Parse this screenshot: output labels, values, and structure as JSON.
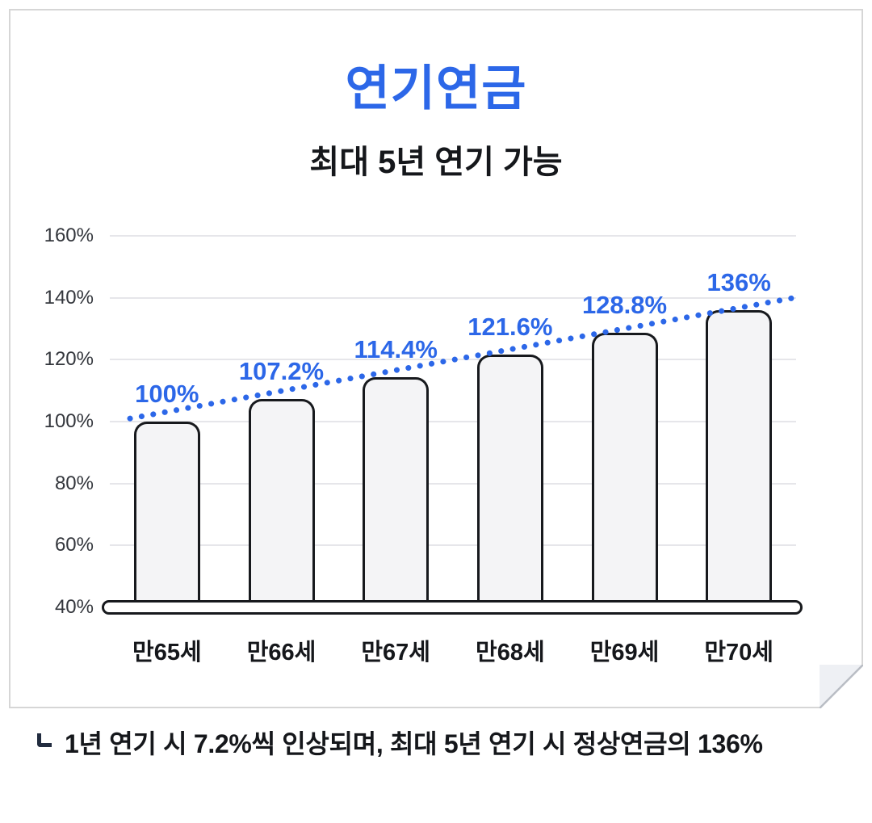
{
  "header": {
    "title": "연기연금",
    "subtitle": "최대 5년 연기 가능"
  },
  "chart_data": {
    "type": "bar",
    "title": "연기연금",
    "subtitle": "최대 5년 연기 가능",
    "categories": [
      "만65세",
      "만66세",
      "만67세",
      "만68세",
      "만69세",
      "만70세"
    ],
    "values": [
      100,
      107.2,
      114.4,
      121.6,
      128.8,
      136
    ],
    "value_labels": [
      "100%",
      "107.2%",
      "114.4%",
      "121.6%",
      "128.8%",
      "136%"
    ],
    "xlabel": "",
    "ylabel": "",
    "ylim": [
      40,
      160
    ],
    "y_ticks": [
      "160%",
      "140%",
      "120%",
      "100%",
      "80%",
      "60%",
      "40%"
    ],
    "y_tick_values": [
      160,
      140,
      120,
      100,
      80,
      60,
      40
    ],
    "grid": true,
    "legend": "none",
    "trendline": {
      "style": "dotted",
      "color": "#2c67e8",
      "from_value": 101,
      "to_value": 140
    },
    "colors": {
      "bar_fill": "#f4f4f6",
      "bar_border": "#17191d",
      "value_label": "#2c67e8",
      "gridline": "#e6e6ea"
    }
  },
  "footnote": {
    "text": "1년 연기 시 7.2%씩 인상되며, 최대 5년 연기 시 정상연금의 136%"
  },
  "colors": {
    "accent_blue": "#2c67e8",
    "text_dark": "#15171b",
    "corner_mark": "#222c3f"
  }
}
